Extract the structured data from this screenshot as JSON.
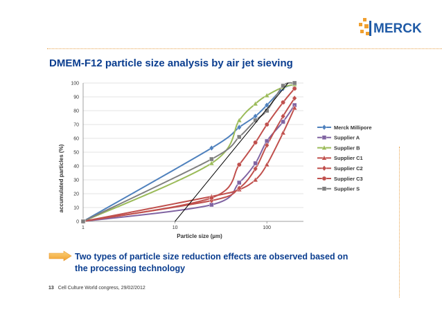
{
  "slide": {
    "title": "DMEM-F12 particle size analysis by air jet sieving",
    "bullet_line1": "Two types of particle size reduction effects are observed based on",
    "bullet_line2": "the processing technology",
    "page_number": "13",
    "footer_text": "Cell Culture World congress, 29/02/2012",
    "logo_text": "MERCK"
  },
  "colors": {
    "title": "#0a3d8f",
    "merck_blue": "#1f5aa6",
    "merck_orange": "#f0a030",
    "rule": "#e8a24a"
  },
  "chart_data": {
    "type": "line",
    "xscale": "log",
    "xlim": [
      1,
      250
    ],
    "ylim": [
      0,
      100
    ],
    "xticks": [
      "1",
      "10",
      "100"
    ],
    "yticks": [
      "0",
      "10",
      "20",
      "30",
      "40",
      "50",
      "60",
      "70",
      "80",
      "90",
      "100"
    ],
    "xlabel": "Particle size (µm)",
    "ylabel": "accumulated particles (%)",
    "grid": "horizontal",
    "legend_position": "right",
    "series": [
      {
        "name": "Merck Millipore",
        "color": "#4f81bd",
        "marker": "diamond",
        "x": [
          1,
          25,
          50,
          75,
          100,
          150,
          200
        ],
        "y": [
          0,
          53,
          68,
          76,
          84,
          96,
          99
        ]
      },
      {
        "name": "Supplier A",
        "color": "#8064a2",
        "marker": "square",
        "x": [
          1,
          25,
          50,
          75,
          100,
          150,
          200
        ],
        "y": [
          0,
          12,
          28,
          42,
          58,
          72,
          84
        ]
      },
      {
        "name": "Supplier B",
        "color": "#9bbb59",
        "marker": "triangle",
        "x": [
          1,
          25,
          50,
          75,
          100,
          150,
          200
        ],
        "y": [
          0,
          42,
          73,
          85,
          91,
          97,
          99
        ]
      },
      {
        "name": "Supplier C1",
        "color": "#c0504d",
        "marker": "triangle",
        "x": [
          1,
          25,
          50,
          75,
          100,
          150,
          200
        ],
        "y": [
          0,
          18,
          23,
          30,
          41,
          64,
          82
        ]
      },
      {
        "name": "Supplier C2",
        "color": "#c0504d",
        "marker": "diamond",
        "x": [
          1,
          25,
          50,
          75,
          100,
          150,
          200
        ],
        "y": [
          0,
          15,
          24,
          38,
          55,
          76,
          89
        ]
      },
      {
        "name": "Supplier C3",
        "color": "#c0504d",
        "marker": "circle",
        "x": [
          1,
          25,
          50,
          75,
          100,
          150,
          200
        ],
        "y": [
          0,
          17,
          41,
          57,
          70,
          86,
          96
        ]
      },
      {
        "name": "Supplier S",
        "color": "#7f7f7f",
        "marker": "square",
        "x": [
          1,
          25,
          50,
          75,
          100,
          150,
          200
        ],
        "y": [
          0,
          45,
          61,
          73,
          80,
          98,
          100
        ]
      }
    ],
    "annotation_line": {
      "x": [
        10,
        170
      ],
      "y": [
        0,
        100
      ],
      "color": "#000000"
    }
  }
}
